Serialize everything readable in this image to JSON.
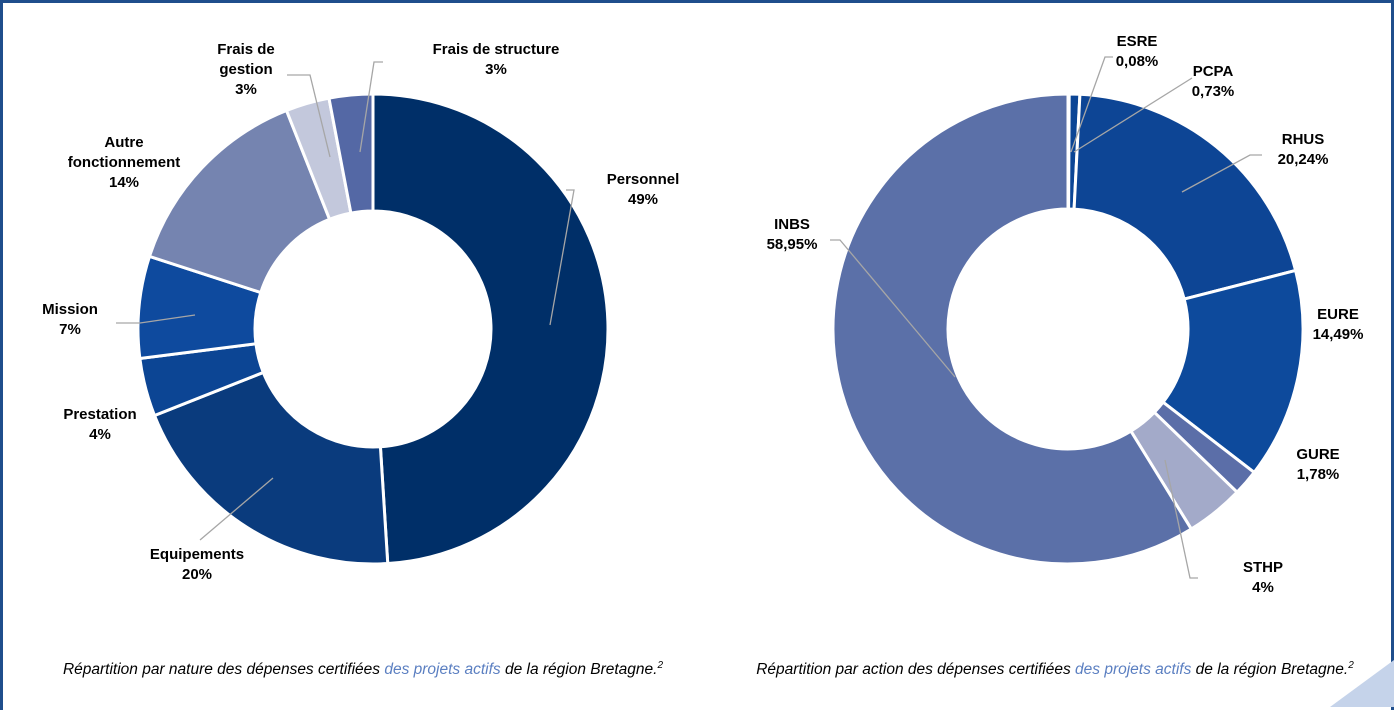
{
  "chart_data": [
    {
      "type": "donut",
      "categories": [
        "Personnel",
        "Equipements",
        "Prestation",
        "Mission",
        "Autre fonctionnement",
        "Frais de gestion",
        "Frais de structure"
      ],
      "values": [
        49,
        20,
        4,
        7,
        14,
        3,
        3
      ],
      "value_labels": [
        "49%",
        "20%",
        "4%",
        "7%",
        "14%",
        "3%",
        "3%"
      ],
      "colors": [
        "#002f68",
        "#0a3b7d",
        "#0c4594",
        "#0e4a9e",
        "#7584b0",
        "#c3c8dc",
        "#5468a5"
      ],
      "caption": [
        "Répartition par nature des dépenses certifiées ",
        "des projets actifs",
        " de la région Bretagne.",
        "2"
      ]
    },
    {
      "type": "donut",
      "categories": [
        "ESRE",
        "PCPA",
        "RHUS",
        "EURE",
        "GURE",
        "STHP",
        "INBS"
      ],
      "values": [
        0.08,
        0.73,
        20.24,
        14.49,
        1.78,
        4,
        58.95
      ],
      "value_labels": [
        "0,08%",
        "0,73%",
        "20,24%",
        "14,49%",
        "1,78%",
        "4%",
        "58,95%"
      ],
      "colors": [
        "#002f68",
        "#0b4595",
        "#0d4595",
        "#0d4a9c",
        "#5b6ea8",
        "#a3aac9",
        "#5b70a8"
      ],
      "caption": [
        "Répartition par action des dépenses certifiées ",
        "des projets actifs",
        " de la région Bretagne.",
        "2"
      ]
    }
  ]
}
